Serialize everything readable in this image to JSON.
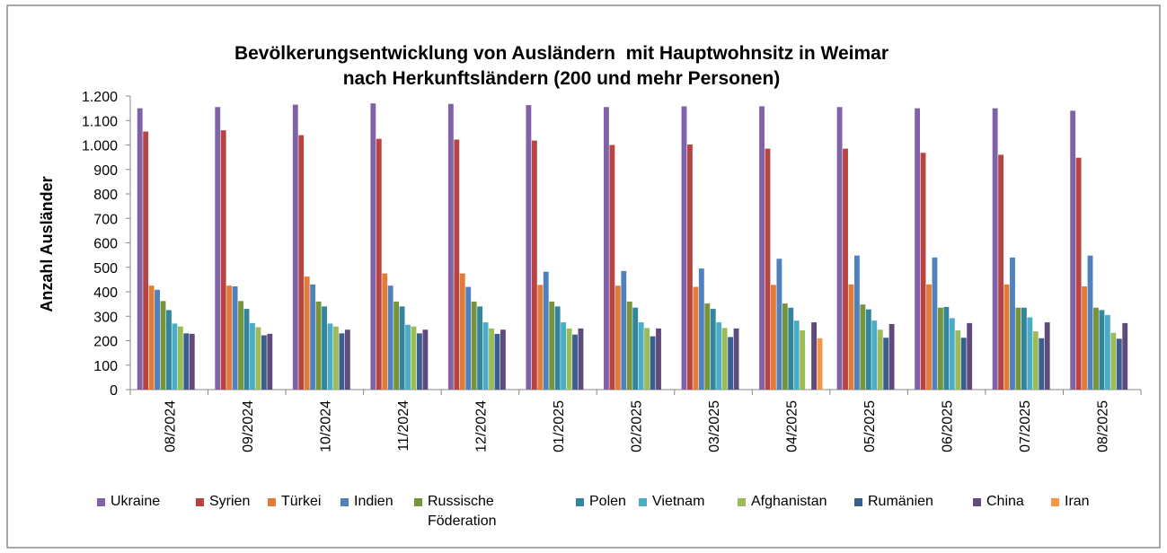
{
  "chart_data": {
    "type": "bar",
    "title": [
      "Bevölkerungsentwicklung von Ausländern  mit Hauptwohnsitz in Weimar",
      "nach Herkunftsländern (200 und mehr Personen)"
    ],
    "y_label": "Anzahl Ausländer",
    "categories": [
      "08/2024",
      "09/2024",
      "10/2024",
      "11/2024",
      "12/2024",
      "01/2025",
      "02/2025",
      "03/2025",
      "04/2025",
      "05/2025",
      "06/2025",
      "07/2025",
      "08/2025"
    ],
    "series": [
      {
        "name": "Ukraine",
        "color": "#7f62a8",
        "values": [
          1150,
          1155,
          1165,
          1170,
          1168,
          1163,
          1155,
          1158,
          1158,
          1155,
          1150,
          1150,
          1140
        ]
      },
      {
        "name": "Syrien",
        "color": "#b84441",
        "values": [
          1055,
          1060,
          1040,
          1025,
          1022,
          1018,
          1000,
          1002,
          985,
          985,
          968,
          960,
          948
        ]
      },
      {
        "name": "Türkei",
        "color": "#e07b3a",
        "values": [
          425,
          425,
          462,
          475,
          475,
          428,
          425,
          420,
          428,
          430,
          430,
          430,
          422
        ]
      },
      {
        "name": "Indien",
        "color": "#4f81bd",
        "values": [
          408,
          422,
          430,
          425,
          420,
          482,
          485,
          495,
          535,
          548,
          540,
          540,
          548
        ]
      },
      {
        "name": "Russische Föderation",
        "color": "#77933c",
        "values": [
          362,
          362,
          360,
          360,
          360,
          360,
          360,
          352,
          352,
          348,
          335,
          335,
          335
        ]
      },
      {
        "name": "Polen",
        "color": "#31859c",
        "values": [
          325,
          330,
          340,
          340,
          340,
          340,
          335,
          330,
          335,
          328,
          338,
          335,
          325
        ]
      },
      {
        "name": "Vietnam",
        "color": "#4bacc6",
        "values": [
          270,
          272,
          270,
          265,
          275,
          275,
          275,
          275,
          282,
          282,
          292,
          295,
          305
        ]
      },
      {
        "name": "Afghanistan",
        "color": "#9bbb59",
        "values": [
          258,
          255,
          258,
          258,
          250,
          250,
          252,
          252,
          242,
          245,
          242,
          238,
          232
        ]
      },
      {
        "name": "Rumänien",
        "color": "#3b5e91",
        "values": [
          230,
          222,
          230,
          230,
          228,
          225,
          218,
          215,
          null,
          212,
          212,
          210,
          208
        ]
      },
      {
        "name": "China",
        "color": "#604a7b",
        "values": [
          228,
          228,
          245,
          245,
          245,
          250,
          250,
          250,
          275,
          268,
          272,
          275,
          272
        ]
      },
      {
        "name": "Iran",
        "color": "#f79646",
        "values": [
          null,
          null,
          null,
          null,
          null,
          null,
          null,
          null,
          210,
          null,
          null,
          null,
          null
        ]
      }
    ],
    "ylim": [
      0,
      1200
    ],
    "yticks": [
      0,
      100,
      200,
      300,
      400,
      500,
      600,
      700,
      800,
      900,
      {
        "value": 1000,
        "label": "1.000"
      },
      {
        "value": 1100,
        "label": "1.100"
      },
      {
        "value": 1200,
        "label": "1.200"
      }
    ]
  }
}
